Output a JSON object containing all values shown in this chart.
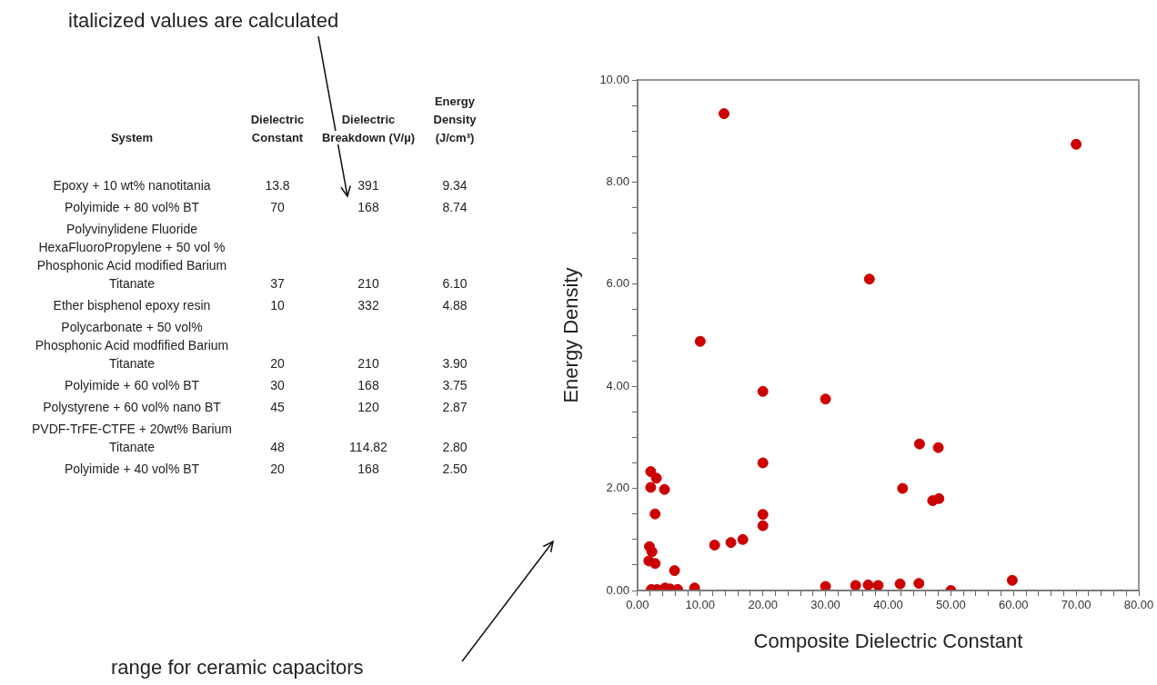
{
  "chart_data": [
    {
      "type": "other",
      "categories": [
        "System",
        "Dielectric Constant",
        "Dielectric Breakdown (V/µ)",
        "Energy Density (J/cm³)"
      ],
      "y_categories": [
        "Epoxy + 10 wt% nanotitania",
        "Polyimide  + 80 vol% BT",
        "Polyvinylidene Fluoride HexaFluoroPropylene + 50 vol % Phosphonic Acid modified Barium Titanate",
        "Ether bisphenol epoxy resin",
        "Polycarbonate + 50 vol% Phosphonic Acid modfified Barium Titanate",
        "Polyimide  + 60 vol% BT",
        "Polystyrene + 60 vol%  nano BT",
        "PVDF-TrFE-CTFE + 20wt% Barium Titanate",
        "Polyimide  + 40 vol% BT"
      ],
      "cell_labels": [
        [
          "13.8",
          "391",
          "9.34"
        ],
        [
          "70",
          "168",
          "8.74"
        ],
        [
          "37",
          "210",
          "6.10"
        ],
        [
          "10",
          "332",
          "4.88"
        ],
        [
          "20",
          "210",
          "3.90"
        ],
        [
          "30",
          "168",
          "3.75"
        ],
        [
          "45",
          "120",
          "2.87"
        ],
        [
          "48",
          "114.82",
          "2.80"
        ],
        [
          "20",
          "168",
          "2.50"
        ]
      ],
      "annotations": [
        "italicized values are calculated",
        "range for ceramic capacitors"
      ]
    },
    {
      "type": "scatter",
      "xlabel": "Composite Dielectric Constant",
      "ylabel": "Energy Density",
      "color": "#cc0000",
      "marker": "circle",
      "grid": false,
      "legend": false,
      "x": [
        13.8,
        70,
        37,
        10,
        20,
        30,
        45,
        48,
        20,
        42.3,
        47.1,
        48.1,
        20,
        20,
        12.3,
        14.9,
        16.8,
        2.1,
        3.0,
        2.1,
        4.3,
        2.8,
        1.9,
        2.3,
        1.8,
        2.8,
        5.9,
        9.1,
        2.2,
        3.1,
        4.4,
        5.2,
        6.4,
        30,
        34.8,
        36.8,
        38.4,
        41.9,
        44.9,
        50,
        59.8
      ],
      "values": [
        9.34,
        8.74,
        6.1,
        4.88,
        3.9,
        3.75,
        2.87,
        2.8,
        2.5,
        2.0,
        1.76,
        1.8,
        1.49,
        1.27,
        0.89,
        0.94,
        1.0,
        2.33,
        2.2,
        2.02,
        1.98,
        1.5,
        0.86,
        0.76,
        0.58,
        0.53,
        0.39,
        0.05,
        0.02,
        0.02,
        0.05,
        0.03,
        0.02,
        0.08,
        0.1,
        0.11,
        0.1,
        0.13,
        0.14,
        0.0,
        0.2
      ],
      "xlim": [
        0,
        80
      ],
      "xticks": [
        {
          "value": 0,
          "label": "0.00"
        },
        {
          "value": 2,
          "label": null
        },
        {
          "value": 4,
          "label": null
        },
        {
          "value": 6,
          "label": null
        },
        {
          "value": 8,
          "label": null
        },
        {
          "value": 10,
          "label": "10.00"
        },
        {
          "value": 12,
          "label": null
        },
        {
          "value": 14,
          "label": null
        },
        {
          "value": 16,
          "label": null
        },
        {
          "value": 18,
          "label": null
        },
        {
          "value": 20,
          "label": "20.00"
        },
        {
          "value": 22,
          "label": null
        },
        {
          "value": 24,
          "label": null
        },
        {
          "value": 26,
          "label": null
        },
        {
          "value": 28,
          "label": null
        },
        {
          "value": 30,
          "label": "30.00"
        },
        {
          "value": 32,
          "label": null
        },
        {
          "value": 34,
          "label": null
        },
        {
          "value": 36,
          "label": null
        },
        {
          "value": 38,
          "label": null
        },
        {
          "value": 40,
          "label": "40.00"
        },
        {
          "value": 42,
          "label": null
        },
        {
          "value": 44,
          "label": null
        },
        {
          "value": 46,
          "label": null
        },
        {
          "value": 48,
          "label": null
        },
        {
          "value": 50,
          "label": "50.00"
        },
        {
          "value": 52,
          "label": null
        },
        {
          "value": 54,
          "label": null
        },
        {
          "value": 56,
          "label": null
        },
        {
          "value": 58,
          "label": null
        },
        {
          "value": 60,
          "label": "60.00"
        },
        {
          "value": 62,
          "label": null
        },
        {
          "value": 64,
          "label": null
        },
        {
          "value": 66,
          "label": null
        },
        {
          "value": 68,
          "label": null
        },
        {
          "value": 70,
          "label": "70.00"
        },
        {
          "value": 72,
          "label": null
        },
        {
          "value": 74,
          "label": null
        },
        {
          "value": 76,
          "label": null
        },
        {
          "value": 78,
          "label": null
        },
        {
          "value": 80,
          "label": "80.00"
        }
      ],
      "ylim": [
        0,
        10
      ],
      "yticks": [
        {
          "value": 0,
          "label": "0.00"
        },
        {
          "value": 0.5,
          "label": null
        },
        {
          "value": 1,
          "label": null
        },
        {
          "value": 1.5,
          "label": null
        },
        {
          "value": 2,
          "label": "2.00"
        },
        {
          "value": 2.5,
          "label": null
        },
        {
          "value": 3,
          "label": null
        },
        {
          "value": 3.5,
          "label": null
        },
        {
          "value": 4,
          "label": "4.00"
        },
        {
          "value": 4.5,
          "label": null
        },
        {
          "value": 5,
          "label": null
        },
        {
          "value": 5.5,
          "label": null
        },
        {
          "value": 6,
          "label": "6.00"
        },
        {
          "value": 6.5,
          "label": null
        },
        {
          "value": 7,
          "label": null
        },
        {
          "value": 7.5,
          "label": null
        },
        {
          "value": 8,
          "label": "8.00"
        },
        {
          "value": 8.5,
          "label": null
        },
        {
          "value": 9,
          "label": null
        },
        {
          "value": 9.5,
          "label": null
        },
        {
          "value": 10,
          "label": "10.00"
        }
      ]
    }
  ]
}
